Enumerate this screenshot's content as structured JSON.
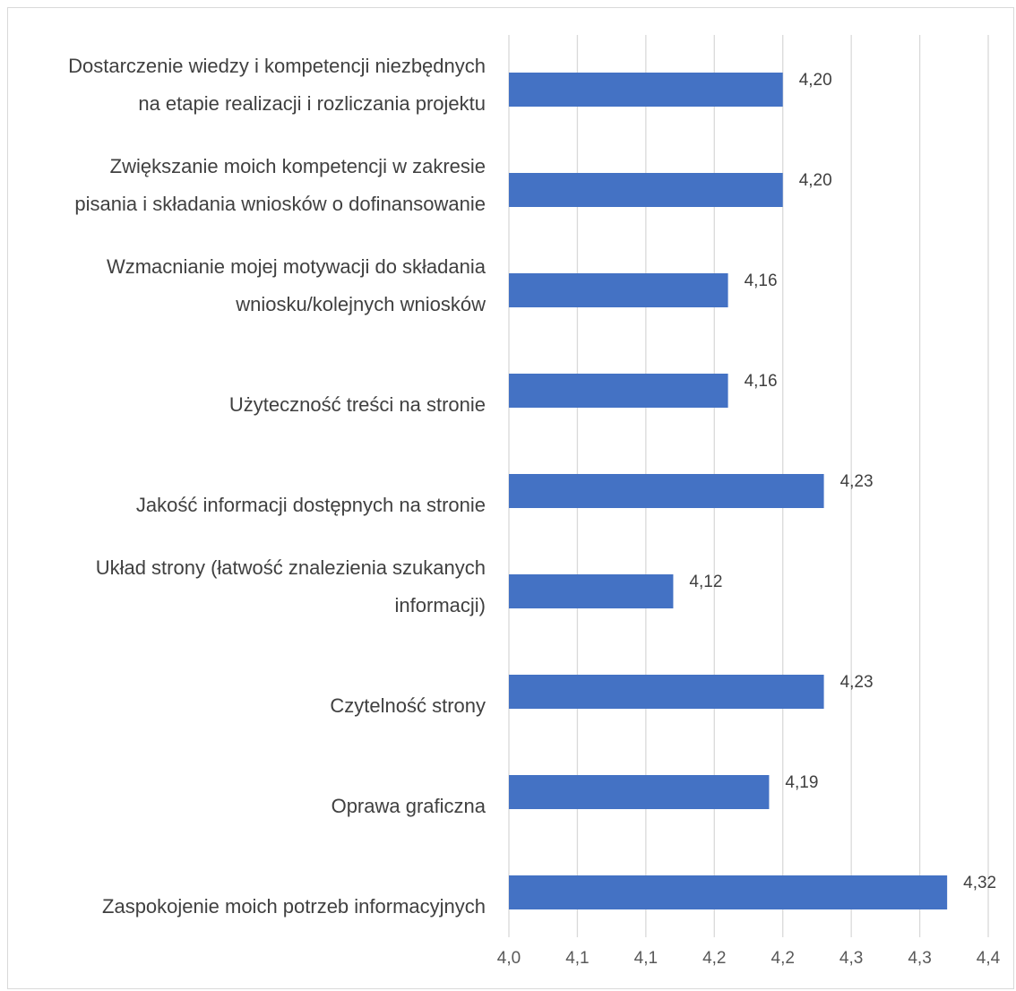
{
  "chart_data": {
    "type": "bar",
    "orientation": "horizontal",
    "categories": [
      [
        "Dostarczenie wiedzy i kompetencji niezbędnych",
        "na etapie realizacji i rozliczania projektu"
      ],
      [
        "Zwiększanie moich kompetencji w zakresie",
        "pisania i składania wniosków o dofinansowanie"
      ],
      [
        "Wzmacnianie mojej motywacji do składania",
        "wniosku/kolejnych wniosków"
      ],
      [
        "Użyteczność treści na stronie"
      ],
      [
        "Jakość informacji dostępnych na stronie"
      ],
      [
        "Układ strony (łatwość znalezienia szukanych",
        "informacji)"
      ],
      [
        "Czytelność strony"
      ],
      [
        "Oprawa graficzna"
      ],
      [
        "Zaspokojenie moich potrzeb informacyjnych"
      ]
    ],
    "values": [
      4.2,
      4.2,
      4.16,
      4.16,
      4.23,
      4.12,
      4.23,
      4.19,
      4.32
    ],
    "value_labels": [
      "4,20",
      "4,20",
      "4,16",
      "4,16",
      "4,23",
      "4,12",
      "4,23",
      "4,19",
      "4,32"
    ],
    "xlim": [
      4.0,
      4.35
    ],
    "x_ticks": [
      4.0,
      4.05,
      4.1,
      4.15,
      4.2,
      4.25,
      4.3,
      4.35
    ],
    "x_tick_labels": [
      "4,0",
      "4,1",
      "4,1",
      "4,2",
      "4,2",
      "4,3",
      "4,3",
      "4,4"
    ],
    "grid": true,
    "bar_color": "#4472c4",
    "grid_color": "#d9d9d9",
    "title": "",
    "xlabel": "",
    "ylabel": ""
  }
}
